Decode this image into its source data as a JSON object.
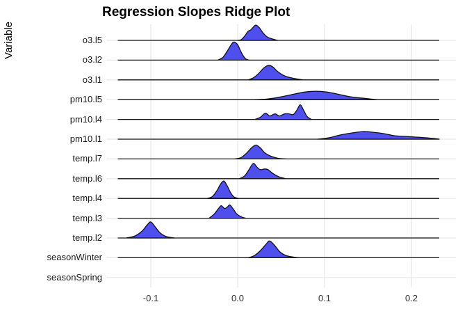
{
  "chart_data": {
    "type": "ridgeline",
    "title": "Regression Slopes Ridge Plot",
    "ylabel": "Variable",
    "xlabel": "",
    "legend": "none",
    "grid": "light-gray major gridlines, white panel",
    "x_tick_labels": [
      "-0.1",
      "0.0",
      "0.1",
      "0.2"
    ],
    "x_tick_values": [
      -0.1,
      0.0,
      0.1,
      0.2
    ],
    "xlim": [
      -0.151,
      0.251
    ],
    "categories": [
      "o3.l5",
      "o3.l2",
      "o3.l1",
      "pm10.l5",
      "pm10.l4",
      "pm10.l1",
      "temp.l7",
      "temp.l6",
      "temp.l4",
      "temp.l3",
      "temp.l2",
      "seasonWinter",
      "seasonSpring"
    ],
    "fill_color": "#4f4fee",
    "stroke_color": "#111111",
    "grid_color": "#e7e7e7",
    "trace_x_range": [
      -0.138,
      0.232
    ],
    "series": [
      {
        "name": "o3.l5",
        "peak_x": 0.02,
        "points": [
          [
            0.0,
            0
          ],
          [
            0.004,
            1
          ],
          [
            0.008,
            6
          ],
          [
            0.012,
            13
          ],
          [
            0.015,
            15
          ],
          [
            0.018,
            19
          ],
          [
            0.021,
            22
          ],
          [
            0.025,
            18
          ],
          [
            0.029,
            11
          ],
          [
            0.034,
            5
          ],
          [
            0.04,
            2
          ],
          [
            0.046,
            0
          ]
        ]
      },
      {
        "name": "o3.l2",
        "peak_x": -0.004,
        "points": [
          [
            -0.023,
            0
          ],
          [
            -0.017,
            4
          ],
          [
            -0.012,
            13
          ],
          [
            -0.007,
            23
          ],
          [
            -0.004,
            26
          ],
          [
            0.0,
            22
          ],
          [
            0.003,
            14
          ],
          [
            0.006,
            7
          ],
          [
            0.009,
            2
          ],
          [
            0.013,
            0
          ]
        ]
      },
      {
        "name": "o3.l1",
        "peak_x": 0.037,
        "points": [
          [
            0.012,
            0
          ],
          [
            0.018,
            3
          ],
          [
            0.024,
            9
          ],
          [
            0.03,
            17
          ],
          [
            0.036,
            21
          ],
          [
            0.041,
            18
          ],
          [
            0.046,
            12
          ],
          [
            0.052,
            7
          ],
          [
            0.058,
            4
          ],
          [
            0.065,
            2
          ],
          [
            0.075,
            0
          ]
        ]
      },
      {
        "name": "pm10.l5",
        "peak_x": 0.09,
        "points": [
          [
            0.02,
            0
          ],
          [
            0.035,
            1
          ],
          [
            0.05,
            4
          ],
          [
            0.065,
            8
          ],
          [
            0.078,
            11
          ],
          [
            0.09,
            12
          ],
          [
            0.102,
            11
          ],
          [
            0.115,
            8
          ],
          [
            0.13,
            4
          ],
          [
            0.145,
            2
          ],
          [
            0.16,
            0
          ]
        ]
      },
      {
        "name": "pm10.l4",
        "peak_x": 0.072,
        "points": [
          [
            0.02,
            0
          ],
          [
            0.026,
            3
          ],
          [
            0.032,
            9
          ],
          [
            0.037,
            5
          ],
          [
            0.043,
            8
          ],
          [
            0.048,
            5
          ],
          [
            0.054,
            8
          ],
          [
            0.059,
            8
          ],
          [
            0.064,
            7
          ],
          [
            0.068,
            13
          ],
          [
            0.072,
            21
          ],
          [
            0.076,
            13
          ],
          [
            0.08,
            4
          ],
          [
            0.085,
            0
          ]
        ]
      },
      {
        "name": "pm10.l1",
        "peak_x": 0.147,
        "points": [
          [
            0.092,
            0
          ],
          [
            0.105,
            2
          ],
          [
            0.118,
            6
          ],
          [
            0.132,
            9
          ],
          [
            0.145,
            11
          ],
          [
            0.155,
            10
          ],
          [
            0.168,
            8
          ],
          [
            0.18,
            5
          ],
          [
            0.193,
            4
          ],
          [
            0.205,
            3
          ],
          [
            0.217,
            2
          ],
          [
            0.226,
            1
          ],
          [
            0.232,
            0
          ]
        ]
      },
      {
        "name": "temp.l7",
        "peak_x": 0.021,
        "points": [
          [
            -0.003,
            0
          ],
          [
            0.004,
            2
          ],
          [
            0.01,
            8
          ],
          [
            0.016,
            16
          ],
          [
            0.021,
            20
          ],
          [
            0.026,
            16
          ],
          [
            0.031,
            9
          ],
          [
            0.038,
            4
          ],
          [
            0.046,
            1
          ],
          [
            0.055,
            0
          ]
        ]
      },
      {
        "name": "temp.l6",
        "peak_x": 0.019,
        "points": [
          [
            0.002,
            0
          ],
          [
            0.008,
            4
          ],
          [
            0.013,
            13
          ],
          [
            0.018,
            22
          ],
          [
            0.022,
            17
          ],
          [
            0.026,
            13
          ],
          [
            0.031,
            14
          ],
          [
            0.035,
            13
          ],
          [
            0.04,
            8
          ],
          [
            0.047,
            3
          ],
          [
            0.055,
            0
          ]
        ]
      },
      {
        "name": "temp.l4",
        "peak_x": -0.016,
        "points": [
          [
            -0.035,
            0
          ],
          [
            -0.029,
            3
          ],
          [
            -0.024,
            11
          ],
          [
            -0.02,
            20
          ],
          [
            -0.016,
            25
          ],
          [
            -0.012,
            18
          ],
          [
            -0.008,
            8
          ],
          [
            -0.004,
            2
          ],
          [
            0.001,
            0
          ]
        ]
      },
      {
        "name": "temp.l3",
        "peak_x": -0.009,
        "points": [
          [
            -0.033,
            0
          ],
          [
            -0.027,
            6
          ],
          [
            -0.022,
            14
          ],
          [
            -0.019,
            18
          ],
          [
            -0.015,
            14
          ],
          [
            -0.012,
            16
          ],
          [
            -0.009,
            19
          ],
          [
            -0.005,
            13
          ],
          [
            -0.001,
            6
          ],
          [
            0.004,
            2
          ],
          [
            0.009,
            0
          ]
        ]
      },
      {
        "name": "temp.l2",
        "peak_x": -0.1,
        "points": [
          [
            -0.128,
            0
          ],
          [
            -0.118,
            3
          ],
          [
            -0.11,
            10
          ],
          [
            -0.104,
            19
          ],
          [
            -0.1,
            23
          ],
          [
            -0.095,
            16
          ],
          [
            -0.089,
            7
          ],
          [
            -0.082,
            2
          ],
          [
            -0.073,
            0
          ]
        ]
      },
      {
        "name": "seasonWinter",
        "peak_x": 0.037,
        "points": [
          [
            0.012,
            0
          ],
          [
            0.019,
            3
          ],
          [
            0.026,
            10
          ],
          [
            0.033,
            20
          ],
          [
            0.037,
            24
          ],
          [
            0.043,
            17
          ],
          [
            0.049,
            8
          ],
          [
            0.056,
            3
          ],
          [
            0.064,
            1
          ],
          [
            0.07,
            0
          ]
        ]
      },
      {
        "name": "seasonSpring",
        "peak_x": null,
        "points": []
      }
    ]
  }
}
